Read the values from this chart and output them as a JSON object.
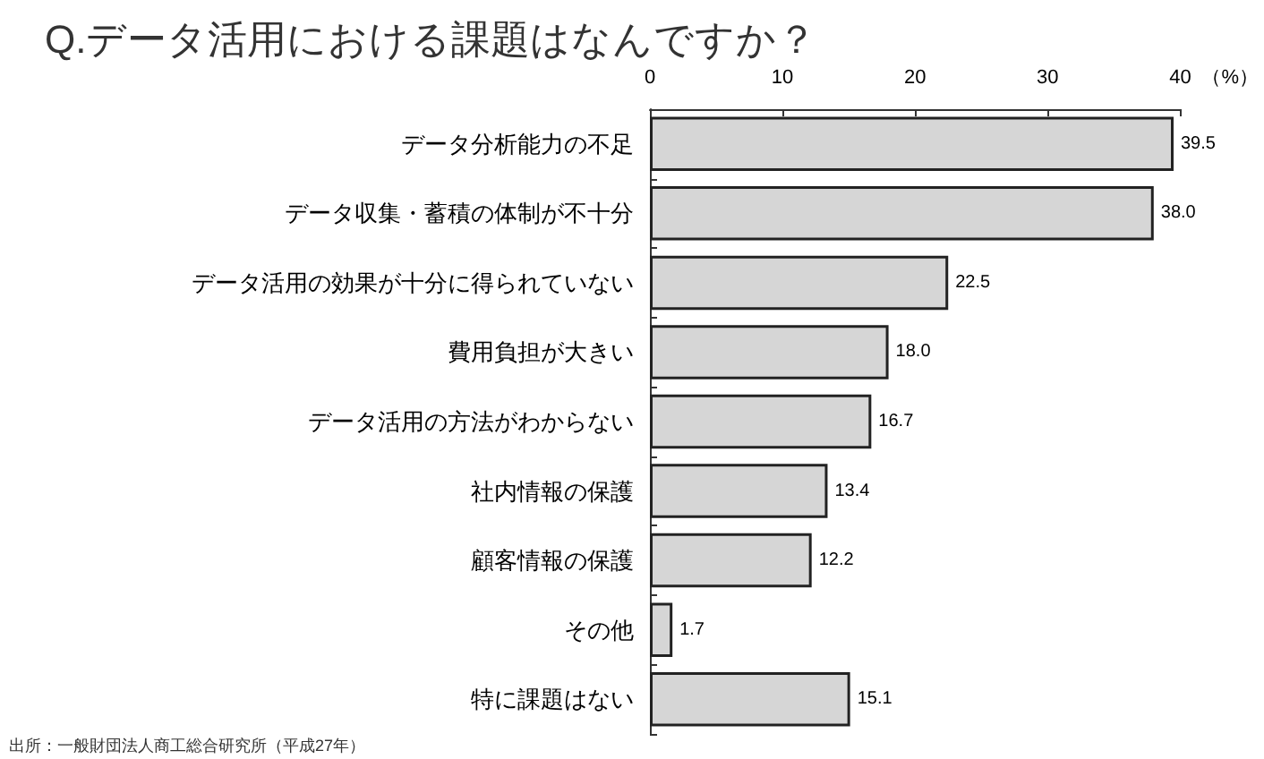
{
  "chart_data": {
    "type": "bar",
    "orientation": "horizontal",
    "title": "Q.データ活用における課題はなんですか？",
    "xlabel": "（%）",
    "categories": [
      "データ分析能力の不足",
      "データ収集・蓄積の体制が不十分",
      "データ活用の効果が十分に得られていない",
      "費用負担が大きい",
      "データ活用の方法がわからない",
      "社内情報の保護",
      "顧客情報の保護",
      "その他",
      "特に課題はない"
    ],
    "values": [
      39.5,
      38.0,
      22.5,
      18.0,
      16.7,
      13.4,
      12.2,
      1.7,
      15.1
    ],
    "value_labels": [
      "39.5",
      "38.0",
      "22.5",
      "18.0",
      "16.7",
      "13.4",
      "12.2",
      "1.7",
      "15.1"
    ],
    "color": "#d6d6d6",
    "xlim": [
      0,
      40
    ],
    "xticks": [
      0,
      10,
      20,
      30,
      40
    ],
    "grid": false,
    "annotations": [
      "出所：一般財団法人商工総合研究所（平成27年）"
    ]
  }
}
